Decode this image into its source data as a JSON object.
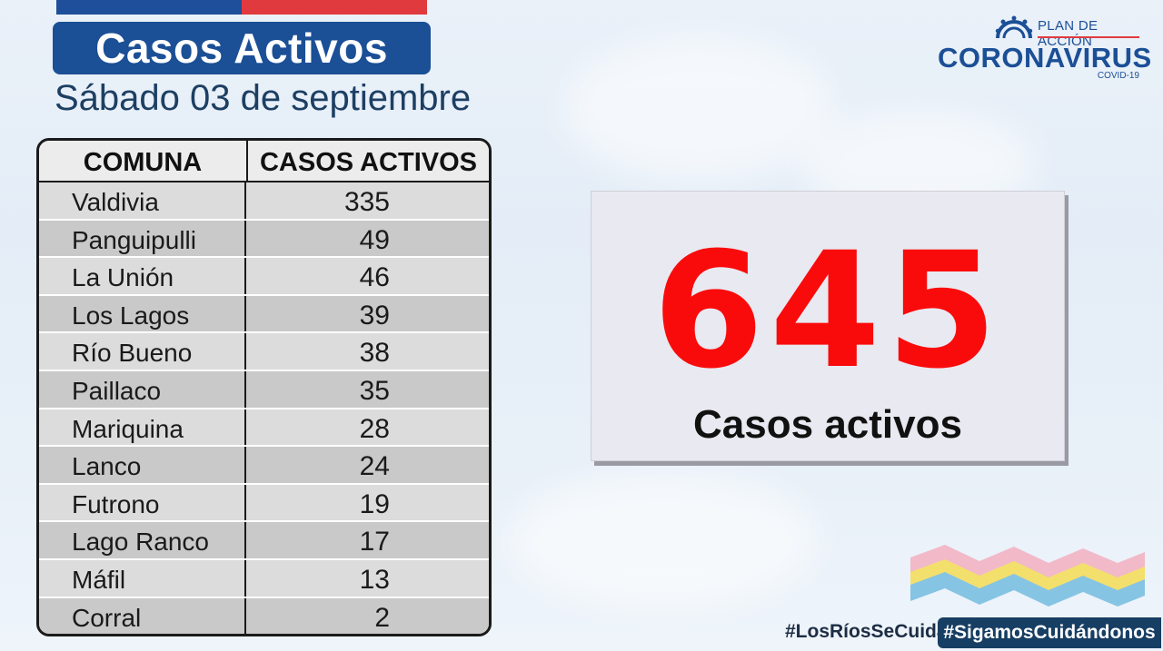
{
  "header": {
    "title": "Casos Activos",
    "date": "Sábado 03 de septiembre"
  },
  "logo": {
    "plan": "PLAN DE ACCIÓN",
    "name": "CORONAVIRUS",
    "covid": "COVID-19"
  },
  "table": {
    "columns": [
      "COMUNA",
      "CASOS ACTIVOS"
    ],
    "rows": [
      {
        "comuna": "Valdivia",
        "casos": "335"
      },
      {
        "comuna": "Panguipulli",
        "casos": "49"
      },
      {
        "comuna": "La Unión",
        "casos": "46"
      },
      {
        "comuna": "Los Lagos",
        "casos": "39"
      },
      {
        "comuna": "Río Bueno",
        "casos": "38"
      },
      {
        "comuna": "Paillaco",
        "casos": "35"
      },
      {
        "comuna": "Mariquina",
        "casos": "28"
      },
      {
        "comuna": "Lanco",
        "casos": "24"
      },
      {
        "comuna": "Futrono",
        "casos": "19"
      },
      {
        "comuna": "Lago Ranco",
        "casos": "17"
      },
      {
        "comuna": "Máfil",
        "casos": "13"
      },
      {
        "comuna": "Corral",
        "casos": "2"
      }
    ]
  },
  "total": {
    "value": "645",
    "label": "Casos activos"
  },
  "footer": {
    "hashtag_1": "#LosRíosSeCuida",
    "hashtag_2": "#SigamosCuidándonos"
  },
  "colors": {
    "banner_blue": "#1b4f96",
    "flag_red": "#e03a3e",
    "total_red": "#fa0b0b"
  }
}
